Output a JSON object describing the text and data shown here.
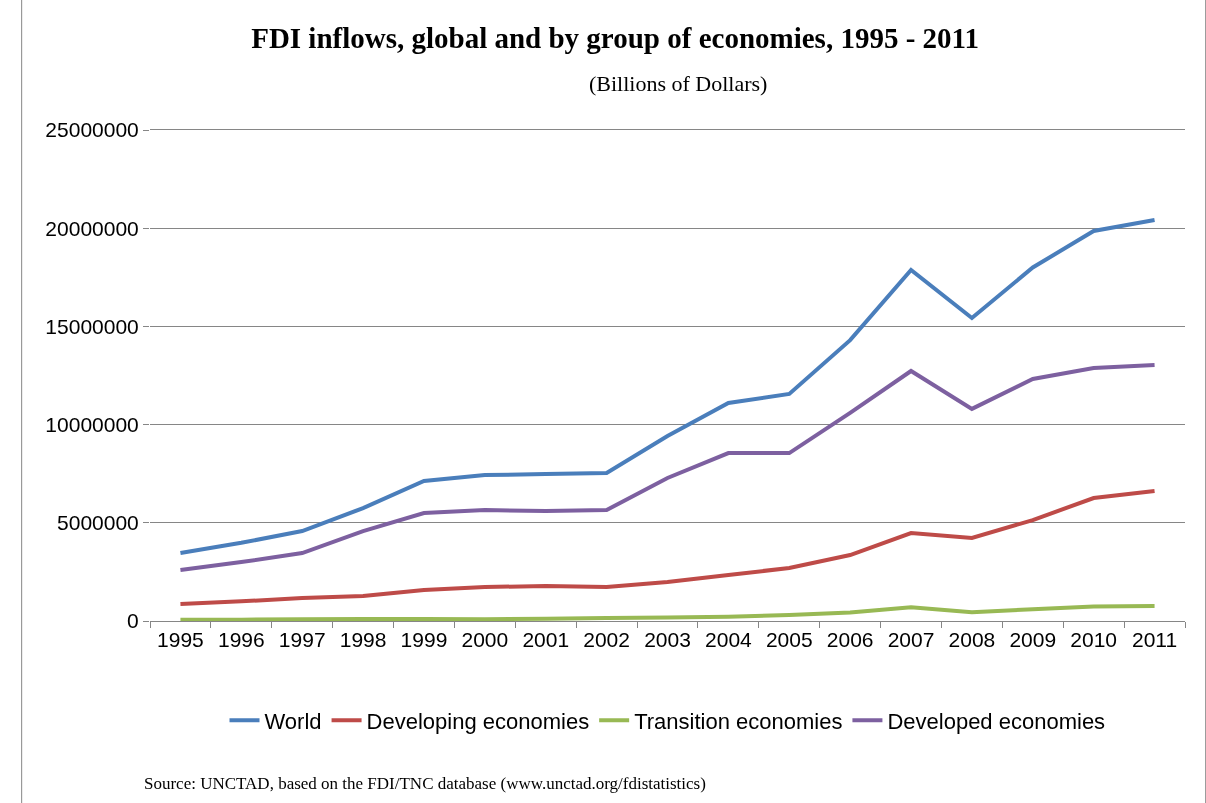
{
  "chart_data": {
    "type": "line",
    "title": "FDI inflows, global and by group of economies, 1995 - 2011",
    "subtitle": "(Billions of Dollars)",
    "categories": [
      "1995",
      "1996",
      "1997",
      "1998",
      "1999",
      "2000",
      "2001",
      "2002",
      "2003",
      "2004",
      "2005",
      "2006",
      "2007",
      "2008",
      "2009",
      "2010",
      "2011"
    ],
    "series": [
      {
        "name": "World",
        "color": "#4a7ebb",
        "values": [
          3460000,
          3980000,
          4580000,
          5750000,
          7130000,
          7430000,
          7480000,
          7540000,
          9420000,
          11100000,
          11560000,
          14300000,
          17870000,
          15430000,
          18000000,
          19860000,
          20420000
        ]
      },
      {
        "name": "Developing economies",
        "color": "#be4b48",
        "values": [
          870000,
          1000000,
          1170000,
          1270000,
          1580000,
          1730000,
          1780000,
          1730000,
          1990000,
          2340000,
          2700000,
          3360000,
          4480000,
          4230000,
          5140000,
          6260000,
          6620000
        ]
      },
      {
        "name": "Transition economies",
        "color": "#98b954",
        "values": [
          60000,
          70000,
          90000,
          100000,
          100000,
          90000,
          120000,
          150000,
          180000,
          220000,
          300000,
          430000,
          700000,
          440000,
          600000,
          740000,
          760000
        ]
      },
      {
        "name": "Developed economies",
        "color": "#7d60a0",
        "values": [
          2600000,
          3000000,
          3460000,
          4580000,
          5500000,
          5650000,
          5600000,
          5650000,
          7280000,
          8550000,
          8550000,
          10600000,
          12730000,
          10800000,
          12320000,
          12880000,
          13030000
        ]
      }
    ],
    "ylim": [
      0,
      25000000
    ],
    "yticks": [
      0,
      5000000,
      10000000,
      15000000,
      20000000,
      25000000
    ],
    "grid": "y",
    "legend": "bottom",
    "marker": "none",
    "line_style": "solid",
    "annotations": [
      "Source: UNCTAD, based on the FDI/TNC database (www.unctad.org/fdistatistics)"
    ]
  }
}
